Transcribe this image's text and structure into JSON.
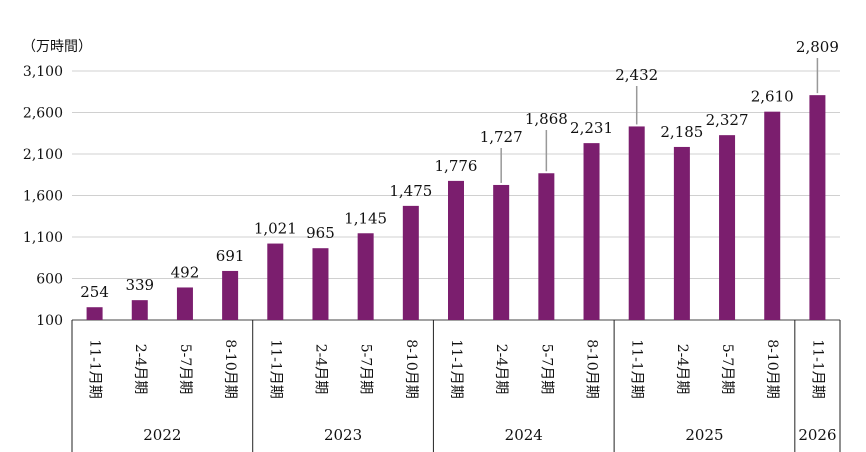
{
  "unit_label": "（万時間）",
  "chart_data": {
    "type": "bar",
    "title": "",
    "ylabel": "",
    "ylim": [
      100,
      3100
    ],
    "yticks": [
      100,
      600,
      1100,
      1600,
      2100,
      2600,
      3100
    ],
    "ytick_labels": [
      "100",
      "600",
      "1,100",
      "1,600",
      "2,100",
      "2,600",
      "3,100"
    ],
    "grid": true,
    "bar_color": "#7B1E6E",
    "categories": [
      {
        "period": "11-1月期",
        "year": "2022"
      },
      {
        "period": "2-4月期",
        "year": "2022"
      },
      {
        "period": "5-7月期",
        "year": "2022"
      },
      {
        "period": "8-10月期",
        "year": "2022"
      },
      {
        "period": "11-1月期",
        "year": "2023"
      },
      {
        "period": "2-4月期",
        "year": "2023"
      },
      {
        "period": "5-7月期",
        "year": "2023"
      },
      {
        "period": "8-10月期",
        "year": "2023"
      },
      {
        "period": "11-1月期",
        "year": "2024"
      },
      {
        "period": "2-4月期",
        "year": "2024"
      },
      {
        "period": "5-7月期",
        "year": "2024"
      },
      {
        "period": "8-10月期",
        "year": "2024"
      },
      {
        "period": "11-1月期",
        "year": "2025"
      },
      {
        "period": "2-4月期",
        "year": "2025"
      },
      {
        "period": "5-7月期",
        "year": "2025"
      },
      {
        "period": "8-10月期",
        "year": "2025"
      },
      {
        "period": "11-1月期",
        "year": "2026"
      }
    ],
    "values": [
      254,
      339,
      492,
      691,
      1021,
      965,
      1145,
      1475,
      1776,
      1727,
      1868,
      2231,
      2432,
      2185,
      2327,
      2610,
      2809
    ],
    "value_labels": [
      "254",
      "339",
      "492",
      "691",
      "1,021",
      "965",
      "1,145",
      "1,475",
      "1,776",
      "1,727",
      "1,868",
      "2,231",
      "2,432",
      "2,185",
      "2,327",
      "2,610",
      "2,809"
    ],
    "year_groups": [
      "2022",
      "2023",
      "2024",
      "2025",
      "2026"
    ]
  }
}
